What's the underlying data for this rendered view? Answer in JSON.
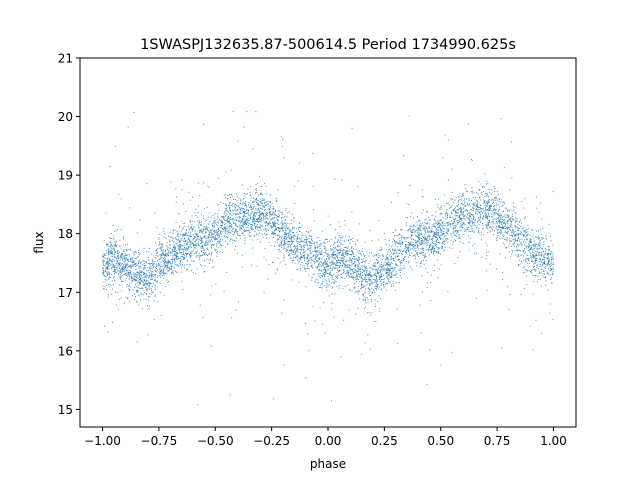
{
  "chart_data": {
    "type": "scatter",
    "title": "1SWASPJ132635.87-500614.5 Period 1734990.625s",
    "xlabel": "phase",
    "ylabel": "flux",
    "xlim": [
      -1.1,
      1.1
    ],
    "ylim": [
      14.7,
      21.0
    ],
    "xticks": [
      -1.0,
      -0.75,
      -0.5,
      -0.25,
      0.0,
      0.25,
      0.5,
      0.75,
      1.0
    ],
    "xtick_labels": [
      "−1.00",
      "−0.75",
      "−0.50",
      "−0.25",
      "0.00",
      "0.25",
      "0.50",
      "0.75",
      "1.00"
    ],
    "yticks": [
      15,
      16,
      17,
      18,
      19,
      20,
      21
    ],
    "ytick_labels": [
      "15",
      "16",
      "17",
      "18",
      "19",
      "20",
      "21"
    ],
    "grid": false,
    "point_color": "#1f77b4",
    "series": [
      {
        "x": [
          -1.0,
          -0.95,
          -0.9,
          -0.85,
          -0.8,
          -0.75,
          -0.7,
          -0.65,
          -0.6,
          -0.55,
          -0.5,
          -0.45,
          -0.4,
          -0.35,
          -0.3,
          -0.25,
          -0.2,
          -0.15,
          -0.1,
          -0.05,
          0.0,
          0.05,
          0.1,
          0.15,
          0.2,
          0.25,
          0.3,
          0.35,
          0.4,
          0.45,
          0.5,
          0.55,
          0.6,
          0.65,
          0.7,
          0.75,
          0.8,
          0.85,
          0.9,
          0.95,
          1.0
        ],
        "y": [
          17.4,
          17.6,
          17.5,
          17.3,
          17.2,
          17.5,
          17.6,
          17.8,
          17.9,
          17.9,
          18.0,
          18.2,
          18.3,
          18.3,
          18.4,
          18.2,
          18.0,
          17.8,
          17.7,
          17.6,
          17.4,
          17.6,
          17.5,
          17.3,
          17.2,
          17.4,
          17.6,
          17.8,
          17.9,
          17.9,
          18.0,
          18.2,
          18.3,
          18.3,
          18.4,
          18.3,
          18.1,
          17.9,
          17.7,
          17.6,
          17.5
        ]
      }
    ]
  }
}
